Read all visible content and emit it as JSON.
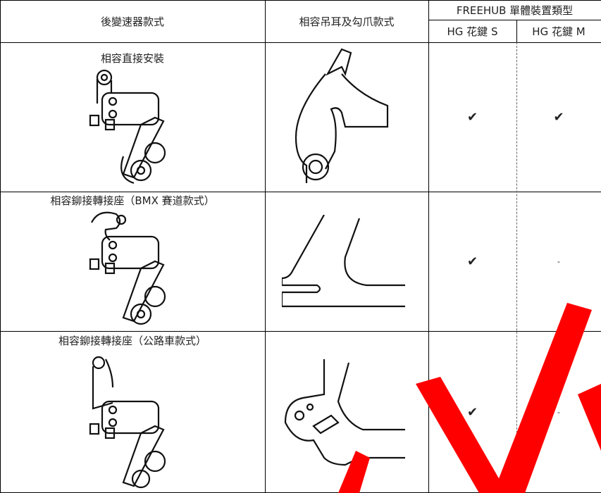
{
  "table": {
    "header": {
      "columns": [
        "後變速器款式",
        "相容吊耳及勾爪款式"
      ],
      "group": "FREEHUB 單體裝置類型",
      "subcolumns": [
        "HG 花鍵 S",
        "HG 花鍵 M"
      ]
    },
    "rows": [
      {
        "label": "相容直接安裝",
        "cells": [
          "✔",
          "✔"
        ]
      },
      {
        "label": "相容鉚接轉接座（BMX 賽道款式）",
        "cells": [
          "✔",
          "-"
        ]
      },
      {
        "label": "相容鉚接轉接座（公路車款式）",
        "cells": [
          "✔",
          "-"
        ]
      }
    ]
  }
}
